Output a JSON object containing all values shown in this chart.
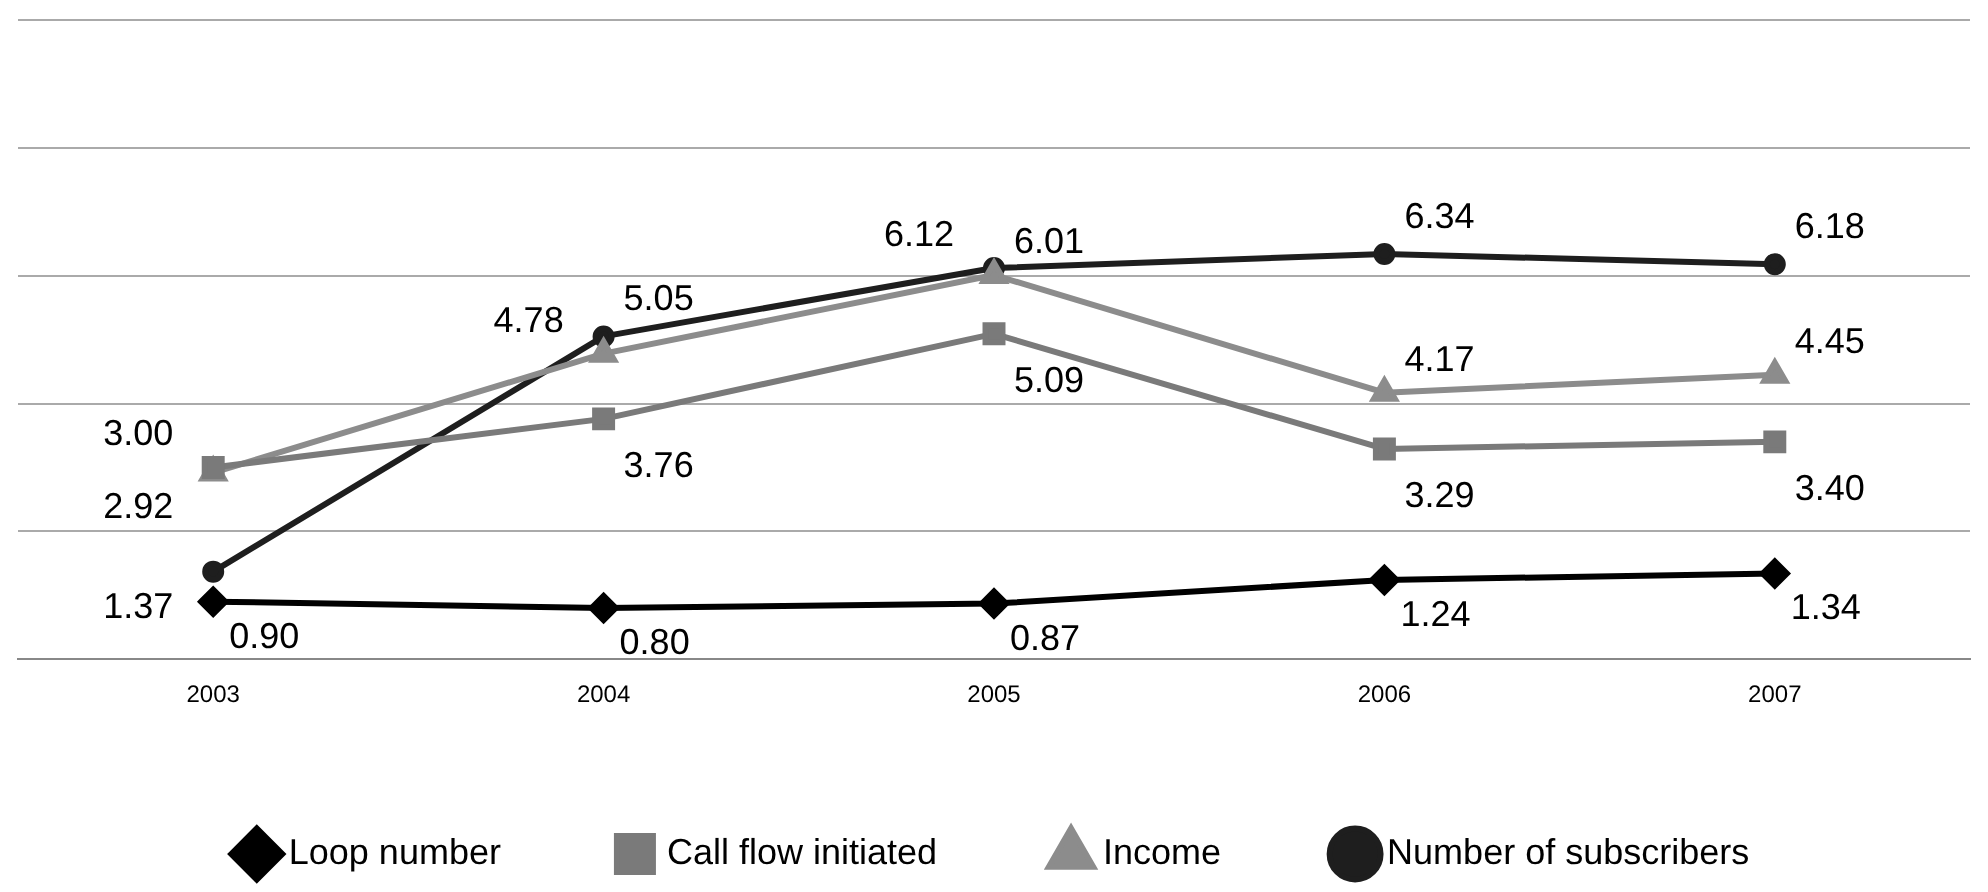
{
  "chart_data": {
    "type": "line",
    "categories": [
      "2003",
      "2004",
      "2005",
      "2006",
      "2007"
    ],
    "series": [
      {
        "name": "Loop number",
        "color": "#000000",
        "marker": "diamond",
        "values": [
          0.9,
          0.8,
          0.87,
          1.24,
          1.34
        ],
        "value_labels": [
          "0.90",
          "0.80",
          "0.87",
          "1.24",
          "1.34"
        ]
      },
      {
        "name": "Call flow initiated",
        "color": "#7a7a7a",
        "marker": "square",
        "values": [
          3.0,
          3.76,
          5.09,
          3.29,
          3.4
        ],
        "value_labels": [
          "3.00",
          "3.76",
          "5.09",
          "3.29",
          "3.40"
        ]
      },
      {
        "name": "Income",
        "color": "#8c8c8c",
        "marker": "triangle",
        "values": [
          2.92,
          4.78,
          6.01,
          4.17,
          4.45
        ],
        "value_labels": [
          "2.92",
          "4.78",
          "6.01",
          "4.17",
          "4.45"
        ]
      },
      {
        "name": "Number of subscribers",
        "color": "#1e1e1e",
        "marker": "circle",
        "values": [
          1.37,
          5.05,
          6.12,
          6.34,
          6.18
        ],
        "value_labels": [
          "1.37",
          "5.05",
          "6.12",
          "6.34",
          "6.18"
        ]
      }
    ],
    "ylim": [
      0,
      10
    ],
    "yticks": [
      {
        "value": 0,
        "label": null
      },
      {
        "value": 2,
        "label": null
      },
      {
        "value": 4,
        "label": null
      },
      {
        "value": 6,
        "label": null
      },
      {
        "value": 8,
        "label": null
      },
      {
        "value": 10,
        "label": null
      }
    ],
    "tick_labels": "x",
    "grid": "y",
    "legend": "bottom"
  }
}
